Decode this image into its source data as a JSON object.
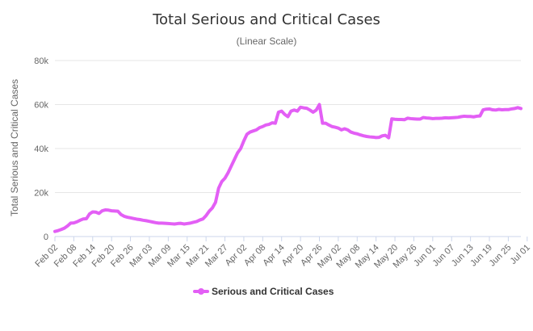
{
  "colors": {
    "series": "#e35ff5",
    "grid": "#e6e6e6",
    "axis": "#ccd6eb"
  },
  "chart_data": {
    "type": "line",
    "title": "Total Serious and Critical Cases",
    "subtitle": "(Linear Scale)",
    "xlabel": "",
    "ylabel": "Total Serious and Critical Cases",
    "ylim": [
      0,
      80000
    ],
    "yticks": [
      0,
      20000,
      40000,
      60000,
      80000
    ],
    "ytick_labels": [
      "0",
      "20k",
      "40k",
      "60k",
      "80k"
    ],
    "grid": true,
    "legend": "bottom-center",
    "x_start_date": "2020-02-02",
    "x_tick_labels": [
      "Feb 02",
      "Feb 08",
      "Feb 14",
      "Feb 20",
      "Feb 26",
      "Mar 03",
      "Mar 09",
      "Mar 15",
      "Mar 21",
      "Mar 27",
      "Apr 02",
      "Apr 08",
      "Apr 14",
      "Apr 20",
      "Apr 26",
      "May 02",
      "May 08",
      "May 14",
      "May 20",
      "May 26",
      "Jun 01",
      "Jun 07",
      "Jun 13",
      "Jun 19",
      "Jun 25",
      "Jul 01"
    ],
    "series": [
      {
        "name": "Serious and Critical Cases",
        "values": [
          2300,
          2700,
          3200,
          3800,
          4800,
          6100,
          6200,
          6700,
          7400,
          8000,
          8100,
          10300,
          11200,
          11100,
          10500,
          11700,
          12100,
          12000,
          11700,
          11600,
          11500,
          10000,
          9200,
          8800,
          8500,
          8200,
          7900,
          7700,
          7400,
          7200,
          6900,
          6600,
          6300,
          6100,
          6100,
          6000,
          5900,
          5800,
          5700,
          5900,
          6000,
          5700,
          5900,
          6100,
          6500,
          6800,
          7500,
          8000,
          9500,
          11500,
          13000,
          15500,
          22000,
          25000,
          26500,
          29000,
          32000,
          35000,
          38000,
          40000,
          43500,
          46500,
          47500,
          48000,
          48500,
          49500,
          50000,
          50700,
          51000,
          51700,
          51500,
          56500,
          57000,
          55500,
          54500,
          57000,
          57500,
          57000,
          58800,
          58500,
          58300,
          57500,
          56500,
          57500,
          60000,
          51500,
          51500,
          50700,
          50000,
          49700,
          49300,
          48500,
          49000,
          48500,
          47500,
          47000,
          46700,
          46200,
          45800,
          45500,
          45300,
          45200,
          45000,
          45100,
          45800,
          46000,
          44900,
          53500,
          53300,
          53200,
          53200,
          53100,
          53800,
          53600,
          53500,
          53400,
          53400,
          54100,
          53900,
          53800,
          53600,
          53700,
          53700,
          53800,
          54000,
          53900,
          54000,
          54100,
          54200,
          54500,
          54700,
          54600,
          54600,
          54400,
          54700,
          54800,
          57600,
          57900,
          58000,
          57600,
          57500,
          57800,
          57600,
          57700,
          57700,
          58000,
          58200,
          58600,
          58200
        ]
      }
    ]
  }
}
